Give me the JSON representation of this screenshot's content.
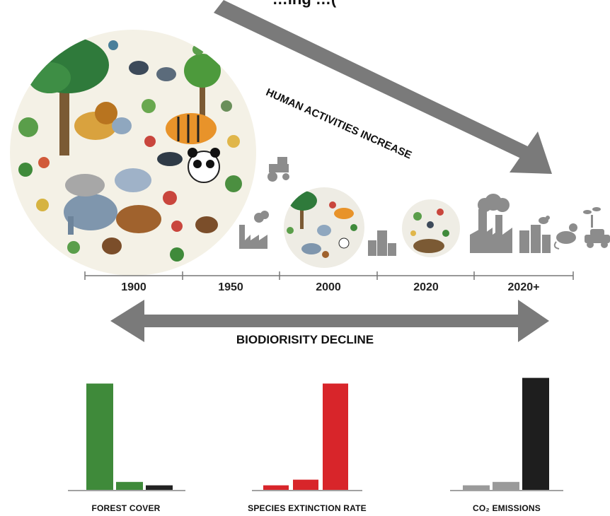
{
  "header": {
    "cut_title": "…ing …("
  },
  "timeline": {
    "years": [
      "1900",
      "1950",
      "2000",
      "2020",
      "2020+"
    ]
  },
  "arrows": {
    "human_activities": "HUMAN ACTIVITIES INCREASE",
    "decline": "BIODIORISITY DECLINE"
  },
  "bar_groups": [
    {
      "label": "FOREST COVER",
      "values": [
        0.94,
        0.07,
        0.04
      ],
      "colors": [
        "#3f8a3a",
        "#3f8a3a",
        "#222222"
      ]
    },
    {
      "label": "SPECIES EXTINCTION RATE",
      "values": [
        0.04,
        0.09,
        0.94
      ],
      "colors": [
        "#d8252a",
        "#d8252a",
        "#d8252a"
      ]
    },
    {
      "label": "CO₂ EMISSIONS",
      "values": [
        0.04,
        0.07,
        0.99
      ],
      "colors": [
        "#9a9a9a",
        "#9a9a9a",
        "#1e1e1e"
      ]
    }
  ],
  "illustrations": {
    "big_circle": "biodiversity-circle-1900",
    "medium_circle": "biodiversity-circle-2000",
    "small_circle": "biodiversity-circle-2020",
    "icons": [
      "tractor-icon",
      "factory-icon",
      "city-icon",
      "factories-icon",
      "city-buildings-icon",
      "rat-icon",
      "bird-icon",
      "car-icon",
      "seedling-icon"
    ]
  },
  "colors": {
    "arrow_gray": "#7a7a7a",
    "icon_gray": "#8c8c8c",
    "forest_green": "#3f8a3a",
    "extinction_red": "#d8252a",
    "emission_black": "#1e1e1e"
  }
}
